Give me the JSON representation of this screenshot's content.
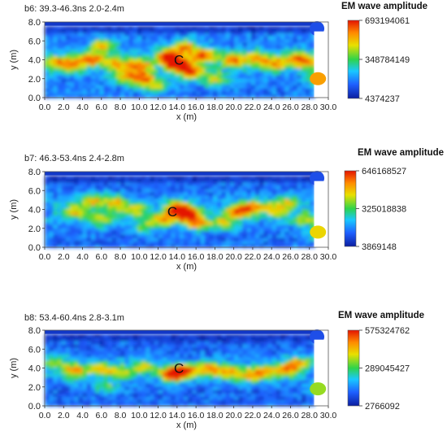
{
  "chart_data": [
    {
      "type": "heatmap",
      "panel": "b6",
      "title": "b6:  39.3-46.3ns  2.0-2.4m",
      "xlabel": "x (m)",
      "ylabel": "y (m)",
      "xlim": [
        0,
        30
      ],
      "ylim": [
        0,
        8
      ],
      "xticks": [
        "0.0",
        "2.0",
        "4.0",
        "6.0",
        "8.0",
        "10.0",
        "12.0",
        "14.0",
        "16.0",
        "18.0",
        "20.0",
        "22.0",
        "24.0",
        "26.0",
        "28.0",
        "30.0"
      ],
      "yticks": [
        "0.0",
        "2.0",
        "4.0",
        "6.0",
        "8.0"
      ],
      "colorbar_title": "EM wave amplitude",
      "colorbar_ticks": [
        "693194061",
        "348784149",
        "4374237"
      ],
      "colorbar_values": [
        693194061,
        348784149,
        4374237
      ],
      "annotation": {
        "text": "C",
        "x": 14.2,
        "y": 4.0
      },
      "background_level": 0.12,
      "anomalies": [
        {
          "x": 14.0,
          "y": 3.6,
          "level": 0.85
        },
        {
          "x": 13.0,
          "y": 4.4,
          "level": 0.7
        },
        {
          "x": 15.5,
          "y": 2.8,
          "level": 0.7
        },
        {
          "x": 14.8,
          "y": 5.4,
          "level": 0.6
        },
        {
          "x": 16.8,
          "y": 4.5,
          "level": 0.6
        },
        {
          "x": 3.0,
          "y": 3.6,
          "level": 0.55
        },
        {
          "x": 5.0,
          "y": 4.2,
          "level": 0.6
        },
        {
          "x": 6.2,
          "y": 5.6,
          "level": 0.5
        },
        {
          "x": 7.5,
          "y": 3.6,
          "level": 0.45
        },
        {
          "x": 10.0,
          "y": 3.4,
          "level": 0.6
        },
        {
          "x": 10.5,
          "y": 2.0,
          "level": 0.65
        },
        {
          "x": 8.5,
          "y": 2.2,
          "level": 0.45
        },
        {
          "x": 1.0,
          "y": 3.8,
          "level": 0.4
        },
        {
          "x": 20.0,
          "y": 4.0,
          "level": 0.55
        },
        {
          "x": 22.5,
          "y": 4.2,
          "level": 0.5
        },
        {
          "x": 24.5,
          "y": 3.6,
          "level": 0.45
        },
        {
          "x": 26.5,
          "y": 4.4,
          "level": 0.35
        },
        {
          "x": 29.5,
          "y": 2.0,
          "level": 0.8
        },
        {
          "x": 27.5,
          "y": 3.8,
          "level": 0.5
        },
        {
          "x": 18.0,
          "y": 2.0,
          "level": 0.45
        },
        {
          "x": 12.0,
          "y": 1.2,
          "level": 0.35
        }
      ]
    },
    {
      "type": "heatmap",
      "panel": "b7",
      "title": "b7:  46.3-53.4ns  2.4-2.8m",
      "xlabel": "x (m)",
      "ylabel": "y (m)",
      "xlim": [
        0,
        30
      ],
      "ylim": [
        0,
        8
      ],
      "xticks": [
        "0.0",
        "2.0",
        "4.0",
        "6.0",
        "8.0",
        "10.0",
        "12.0",
        "14.0",
        "16.0",
        "18.0",
        "20.0",
        "22.0",
        "24.0",
        "26.0",
        "28.0",
        "30.0"
      ],
      "yticks": [
        "0.0",
        "2.0",
        "4.0",
        "6.0",
        "8.0"
      ],
      "colorbar_title": "EM wave amplitude",
      "colorbar_ticks": [
        "646168527",
        "325018838",
        "3869148"
      ],
      "colorbar_values": [
        646168527,
        325018838,
        3869148
      ],
      "annotation": {
        "text": "C",
        "x": 13.5,
        "y": 3.8
      },
      "background_level": 0.1,
      "anomalies": [
        {
          "x": 15.0,
          "y": 3.6,
          "level": 0.9
        },
        {
          "x": 14.0,
          "y": 4.2,
          "level": 0.65
        },
        {
          "x": 16.2,
          "y": 2.6,
          "level": 0.55
        },
        {
          "x": 12.5,
          "y": 3.0,
          "level": 0.5
        },
        {
          "x": 5.0,
          "y": 5.0,
          "level": 0.5
        },
        {
          "x": 7.5,
          "y": 4.8,
          "level": 0.45
        },
        {
          "x": 3.2,
          "y": 3.8,
          "level": 0.45
        },
        {
          "x": 9.5,
          "y": 4.0,
          "level": 0.4
        },
        {
          "x": 6.0,
          "y": 3.0,
          "level": 0.4
        },
        {
          "x": 20.5,
          "y": 3.8,
          "level": 0.6
        },
        {
          "x": 22.0,
          "y": 4.4,
          "level": 0.5
        },
        {
          "x": 19.0,
          "y": 2.6,
          "level": 0.4
        },
        {
          "x": 24.5,
          "y": 4.0,
          "level": 0.45
        },
        {
          "x": 25.8,
          "y": 5.0,
          "level": 0.35
        },
        {
          "x": 29.5,
          "y": 1.6,
          "level": 0.7
        },
        {
          "x": 27.5,
          "y": 3.0,
          "level": 0.35
        },
        {
          "x": 10.5,
          "y": 2.2,
          "level": 0.35
        }
      ]
    },
    {
      "type": "heatmap",
      "panel": "b8",
      "title": "b8:  53.4-60.4ns  2.8-3.1m",
      "xlabel": "x (m)",
      "ylabel": "y (m)",
      "xlim": [
        0,
        30
      ],
      "ylim": [
        0,
        8
      ],
      "xticks": [
        "0.0",
        "2.0",
        "4.0",
        "6.0",
        "8.0",
        "10.0",
        "12.0",
        "14.0",
        "16.0",
        "18.0",
        "20.0",
        "22.0",
        "24.0",
        "26.0",
        "28.0",
        "30.0"
      ],
      "yticks": [
        "0.0",
        "2.0",
        "4.0",
        "6.0",
        "8.0"
      ],
      "colorbar_title": "EM wave amplitude",
      "colorbar_ticks": [
        "575324762",
        "289045427",
        "2766092"
      ],
      "colorbar_values": [
        575324762,
        289045427,
        2766092
      ],
      "annotation": {
        "text": "C",
        "x": 14.2,
        "y": 4.0
      },
      "background_level": 0.08,
      "anomalies": [
        {
          "x": 13.6,
          "y": 3.4,
          "level": 0.9
        },
        {
          "x": 15.0,
          "y": 3.8,
          "level": 0.6
        },
        {
          "x": 3.0,
          "y": 3.8,
          "level": 0.55
        },
        {
          "x": 5.8,
          "y": 4.0,
          "level": 0.45
        },
        {
          "x": 8.0,
          "y": 3.6,
          "level": 0.4
        },
        {
          "x": 10.5,
          "y": 4.2,
          "level": 0.4
        },
        {
          "x": 17.5,
          "y": 4.0,
          "level": 0.5
        },
        {
          "x": 19.5,
          "y": 3.6,
          "level": 0.45
        },
        {
          "x": 21.5,
          "y": 3.2,
          "level": 0.4
        },
        {
          "x": 23.0,
          "y": 3.6,
          "level": 0.45
        },
        {
          "x": 25.5,
          "y": 3.8,
          "level": 0.55
        },
        {
          "x": 26.8,
          "y": 4.6,
          "level": 0.5
        },
        {
          "x": 29.4,
          "y": 1.8,
          "level": 0.6
        },
        {
          "x": 1.0,
          "y": 4.8,
          "level": 0.3
        },
        {
          "x": 6.5,
          "y": 2.0,
          "level": 0.3
        }
      ]
    }
  ]
}
